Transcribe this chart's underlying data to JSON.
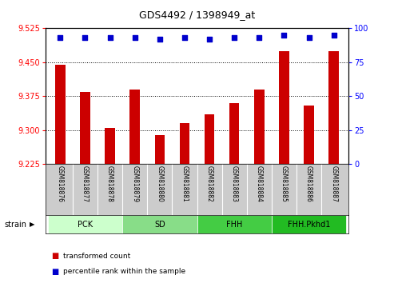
{
  "title": "GDS4492 / 1398949_at",
  "samples": [
    "GSM818876",
    "GSM818877",
    "GSM818878",
    "GSM818879",
    "GSM818880",
    "GSM818881",
    "GSM818882",
    "GSM818883",
    "GSM818884",
    "GSM818885",
    "GSM818886",
    "GSM818887"
  ],
  "bar_values": [
    9.445,
    9.385,
    9.305,
    9.39,
    9.29,
    9.315,
    9.335,
    9.36,
    9.39,
    9.475,
    9.355,
    9.475
  ],
  "percentile_values": [
    93,
    93,
    93,
    93,
    92,
    93,
    92,
    93,
    93,
    95,
    93,
    95
  ],
  "bar_color": "#cc0000",
  "percentile_color": "#0000cc",
  "ylim_left": [
    9.225,
    9.525
  ],
  "ylim_right": [
    0,
    100
  ],
  "yticks_left": [
    9.225,
    9.3,
    9.375,
    9.45,
    9.525
  ],
  "yticks_right": [
    0,
    25,
    50,
    75,
    100
  ],
  "hlines": [
    9.3,
    9.375,
    9.45
  ],
  "groups": [
    {
      "label": "PCK",
      "start": 0,
      "end": 3,
      "color": "#ccffcc"
    },
    {
      "label": "SD",
      "start": 3,
      "end": 6,
      "color": "#88dd88"
    },
    {
      "label": "FHH",
      "start": 6,
      "end": 9,
      "color": "#44cc44"
    },
    {
      "label": "FHH.Pkhd1",
      "start": 9,
      "end": 12,
      "color": "#22bb22"
    }
  ],
  "legend_items": [
    {
      "label": "transformed count",
      "color": "#cc0000"
    },
    {
      "label": "percentile rank within the sample",
      "color": "#0000cc"
    }
  ],
  "strain_label": "strain",
  "background_color": "#ffffff",
  "plot_bg_color": "#ffffff",
  "tick_label_color": "#cccccc"
}
